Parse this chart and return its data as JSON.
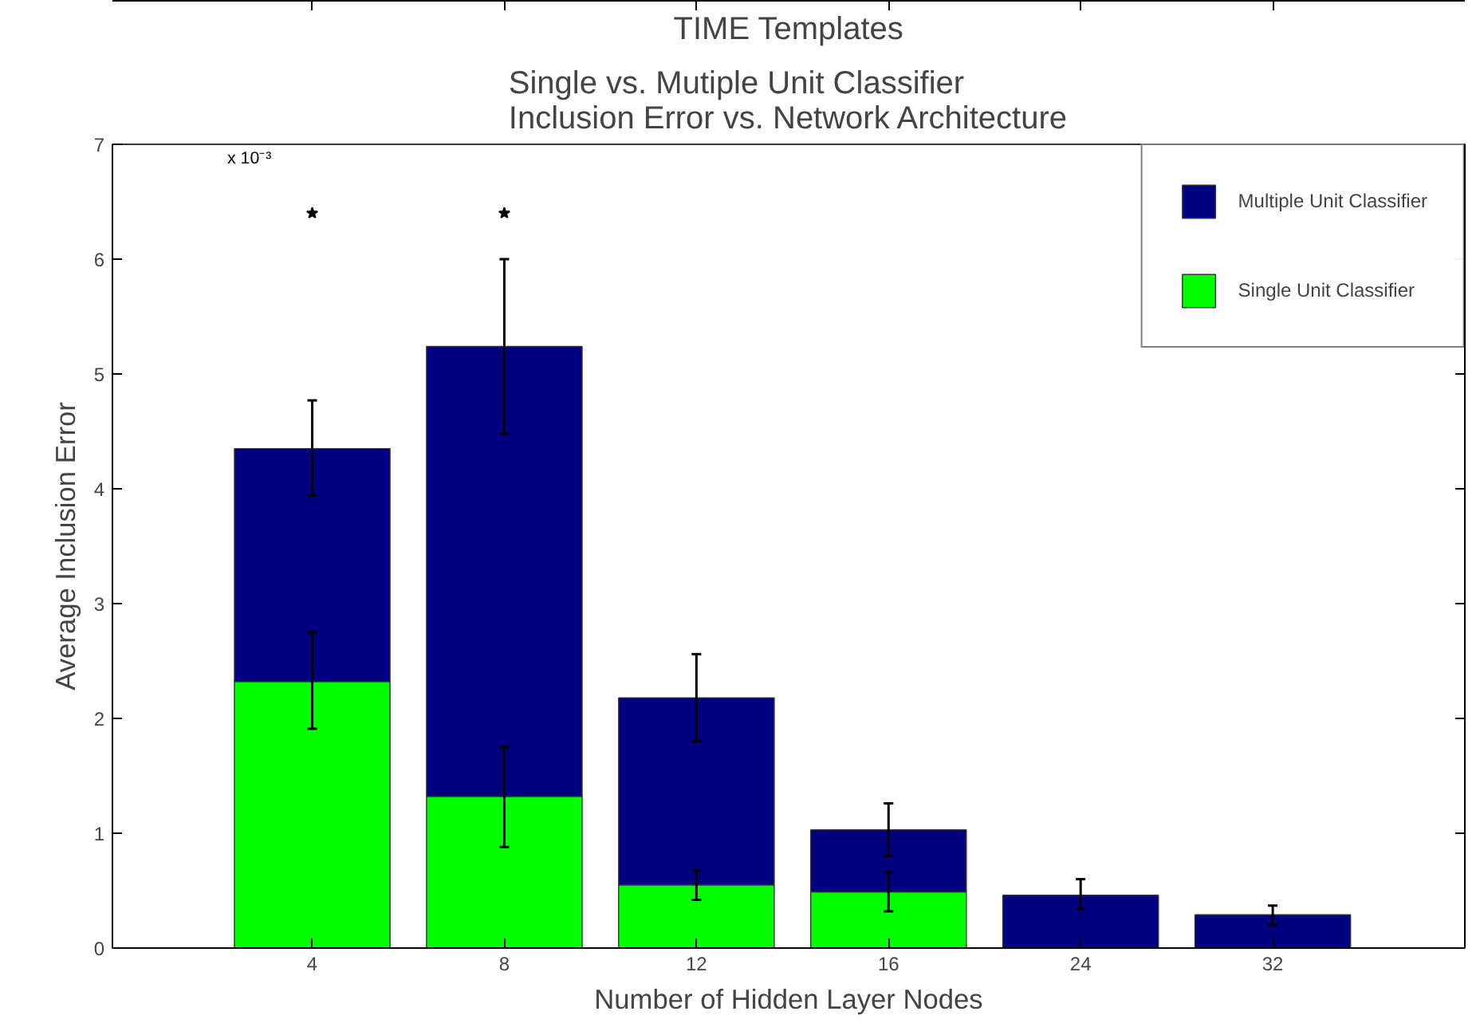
{
  "chart_data": {
    "type": "bar",
    "title": "TIME Templates",
    "subtitle": "Single vs. Mutiple Unit Classifier\nInclusion Error vs. Network Architecture",
    "xlabel": "Number of Hidden Layer Nodes",
    "ylabel": "Average Inclusion Error",
    "categories": [
      "4",
      "8",
      "12",
      "16",
      "24",
      "32"
    ],
    "stacked": true,
    "series": [
      {
        "name": "Single Unit Classifier",
        "color": "#00ff00",
        "values": [
          2.32,
          1.32,
          0.55,
          0.49,
          0,
          0
        ],
        "errors": [
          [
            1.91,
            2.75
          ],
          [
            0.88,
            1.75
          ],
          [
            0.42,
            0.68
          ],
          [
            0.32,
            0.66
          ],
          null,
          null
        ]
      },
      {
        "name": "Multiple Unit Classifier",
        "color": "#000080",
        "values": [
          2.03,
          3.92,
          1.63,
          0.54,
          0.46,
          0.29
        ],
        "errors": [
          [
            3.94,
            4.77
          ],
          [
            4.48,
            6.0
          ],
          [
            1.8,
            2.56
          ],
          [
            0.8,
            1.26
          ],
          [
            0.34,
            0.6
          ],
          [
            0.2,
            0.37
          ]
        ]
      },
      {
        "type": "scatter",
        "color": "#000000",
        "marker": "star",
        "x": [
          "4",
          "8"
        ],
        "values": [
          6.4,
          6.4
        ]
      }
    ],
    "ylim": [
      0,
      7
    ],
    "yticks": [
      0,
      1,
      2,
      3,
      4,
      5,
      6,
      7
    ],
    "annotations": [
      "x 10⁻³"
    ],
    "legend": "top right",
    "grid": false
  }
}
